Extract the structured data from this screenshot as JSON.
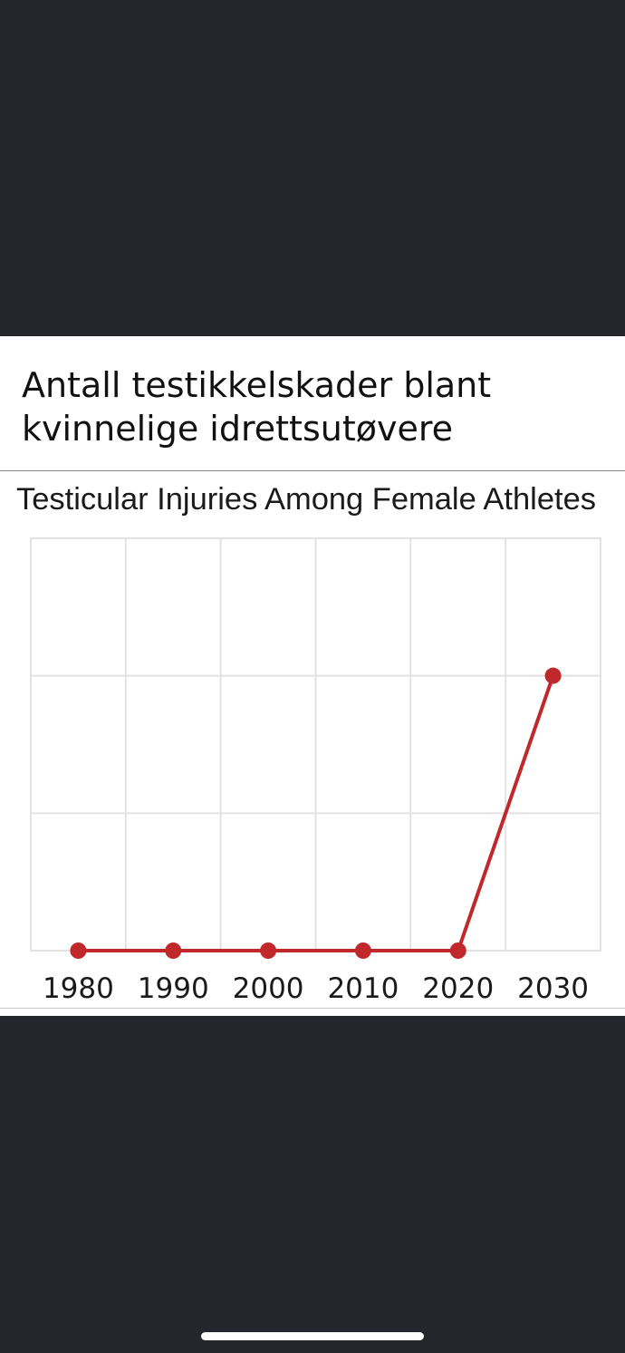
{
  "caption": {
    "line1": "Antall testikkelskader blant",
    "line2": "kvinnelige idrettsutøvere"
  },
  "chart_data": {
    "type": "line",
    "title": "Testicular Injuries Among Female Athletes",
    "xlabel": "",
    "ylabel": "",
    "categories": [
      "1980",
      "1990",
      "2000",
      "2010",
      "2020",
      "2030"
    ],
    "series": [
      {
        "values": [
          0,
          0,
          0,
          0,
          0,
          2
        ],
        "color": "#c0282c"
      }
    ],
    "ylim": [
      0,
      3
    ],
    "grid": true,
    "y_tick_labels": false
  },
  "colors": {
    "background": "#25262b",
    "card": "#ffffff",
    "series": "#c0282c",
    "grid": "#e2e2e2"
  }
}
